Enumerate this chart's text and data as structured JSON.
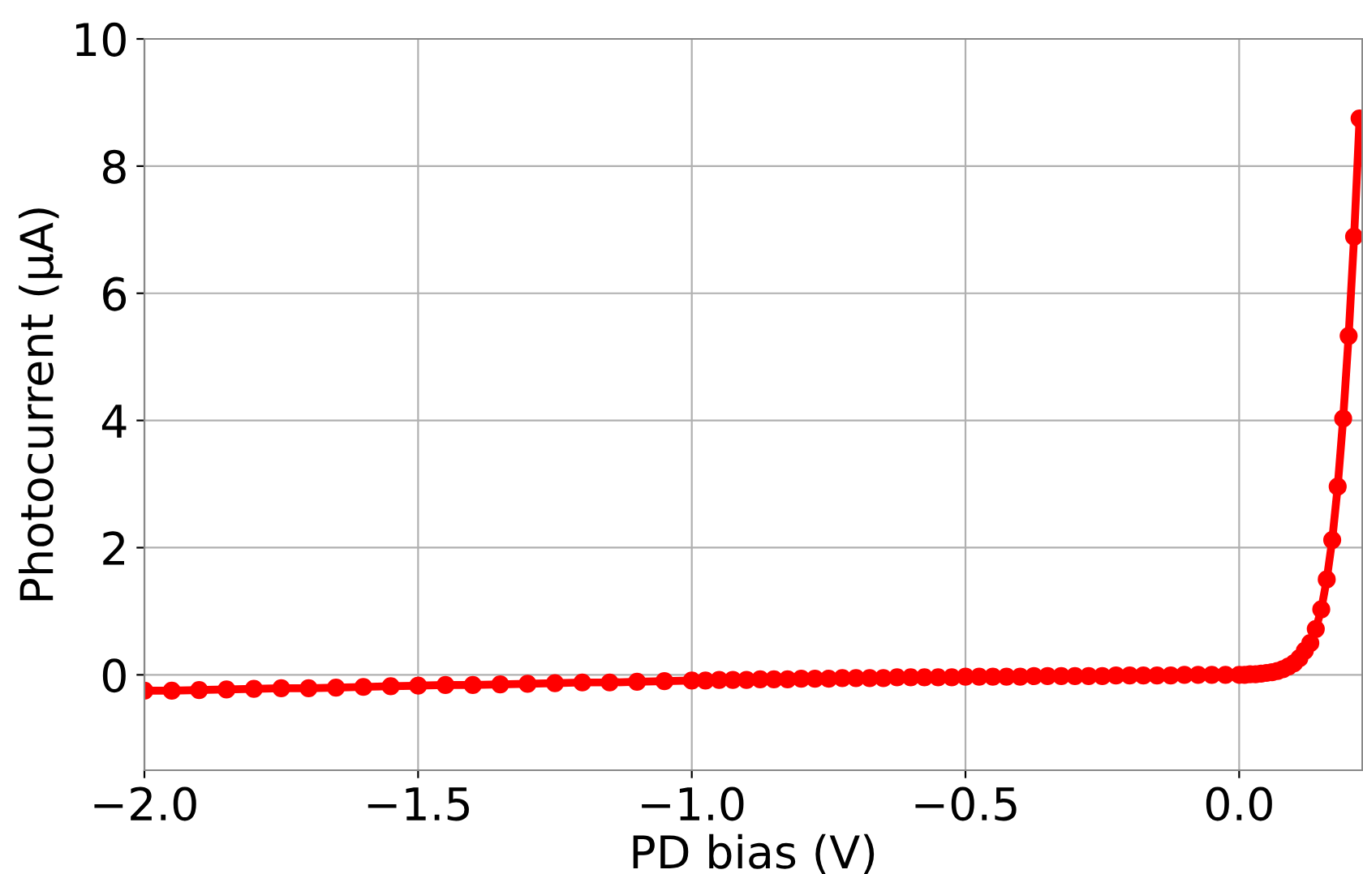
{
  "chart_data": {
    "type": "line",
    "xlabel": "PD bias (V)",
    "ylabel": "Photocurrent (μA)",
    "xlim": [
      -2.0,
      0.225
    ],
    "ylim": [
      -1.5,
      10
    ],
    "xticks": [
      {
        "value": -2.0,
        "label": "−2.0"
      },
      {
        "value": -1.5,
        "label": "−1.5"
      },
      {
        "value": -1.0,
        "label": "−1.0"
      },
      {
        "value": -0.5,
        "label": "−0.5"
      },
      {
        "value": 0.0,
        "label": "0.0"
      }
    ],
    "yticks": [
      0,
      2,
      4,
      6,
      8,
      10
    ],
    "grid": true,
    "marker": "circle",
    "line_style": "solid",
    "series": [
      {
        "color": "#ff0000",
        "x": [
          -2.0,
          -1.95,
          -1.9,
          -1.85,
          -1.8,
          -1.75,
          -1.7,
          -1.65,
          -1.6,
          -1.55,
          -1.5,
          -1.45,
          -1.4,
          -1.35,
          -1.3,
          -1.25,
          -1.2,
          -1.15,
          -1.1,
          -1.05,
          -1.0,
          -0.975,
          -0.95,
          -0.925,
          -0.9,
          -0.875,
          -0.85,
          -0.825,
          -0.8,
          -0.775,
          -0.75,
          -0.725,
          -0.7,
          -0.675,
          -0.65,
          -0.625,
          -0.6,
          -0.575,
          -0.55,
          -0.525,
          -0.5,
          -0.475,
          -0.45,
          -0.425,
          -0.4,
          -0.375,
          -0.35,
          -0.325,
          -0.3,
          -0.275,
          -0.25,
          -0.225,
          -0.2,
          -0.175,
          -0.15,
          -0.125,
          -0.1,
          -0.075,
          -0.05,
          -0.025,
          0.0,
          0.01,
          0.02,
          0.03,
          0.04,
          0.05,
          0.06,
          0.07,
          0.08,
          0.09,
          0.1,
          0.11,
          0.12,
          0.13,
          0.14,
          0.15,
          0.16,
          0.17,
          0.18,
          0.19,
          0.2,
          0.21,
          0.22
        ],
        "values": [
          -0.25,
          -0.25,
          -0.24,
          -0.23,
          -0.22,
          -0.21,
          -0.21,
          -0.2,
          -0.19,
          -0.18,
          -0.17,
          -0.16,
          -0.16,
          -0.15,
          -0.14,
          -0.13,
          -0.12,
          -0.12,
          -0.11,
          -0.1,
          -0.09,
          -0.09,
          -0.08,
          -0.08,
          -0.08,
          -0.07,
          -0.07,
          -0.07,
          -0.06,
          -0.06,
          -0.06,
          -0.05,
          -0.05,
          -0.05,
          -0.05,
          -0.04,
          -0.04,
          -0.04,
          -0.04,
          -0.04,
          -0.03,
          -0.03,
          -0.03,
          -0.03,
          -0.03,
          -0.02,
          -0.02,
          -0.02,
          -0.02,
          -0.02,
          -0.02,
          -0.01,
          -0.01,
          -0.01,
          -0.01,
          -0.01,
          0.0,
          0.0,
          0.0,
          0.0,
          0.0,
          0.0,
          0.01,
          0.01,
          0.02,
          0.03,
          0.04,
          0.06,
          0.09,
          0.13,
          0.18,
          0.26,
          0.38,
          0.5,
          0.72,
          1.03,
          1.5,
          2.12,
          2.96,
          4.03,
          5.33,
          6.89,
          8.75
        ]
      }
    ]
  }
}
